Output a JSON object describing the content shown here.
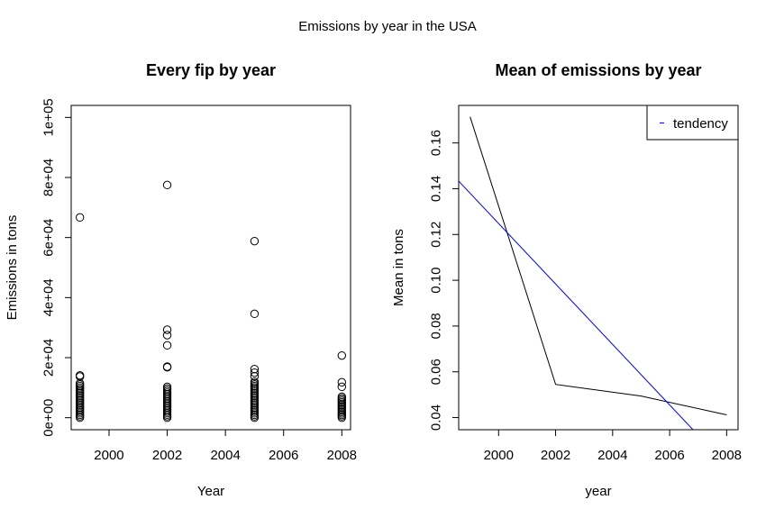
{
  "figure_title": "Emissions by year in the USA",
  "chart_data": [
    {
      "type": "scatter",
      "title": "Every fip by year",
      "xlabel": "Year",
      "ylabel": "Emissions in tons",
      "xlim": [
        1998.7,
        2008.3
      ],
      "ylim": [
        -4000,
        104000
      ],
      "x_ticks": [
        2000,
        2002,
        2004,
        2006,
        2008
      ],
      "x_tick_labels": [
        "2000",
        "2002",
        "2004",
        "2006",
        "2008"
      ],
      "y_ticks": [
        0,
        20000,
        40000,
        60000,
        80000,
        100000
      ],
      "y_tick_labels": [
        "0e+00",
        "2e+04",
        "4e+04",
        "6e+04",
        "8e+04",
        "1e+05"
      ],
      "grid": false,
      "points": [
        {
          "x": 1999,
          "y": 66700
        },
        {
          "x": 1999,
          "y": 14100
        },
        {
          "x": 1999,
          "y": 13700
        },
        {
          "x": 2002,
          "y": 77500
        },
        {
          "x": 2002,
          "y": 29300
        },
        {
          "x": 2002,
          "y": 27500
        },
        {
          "x": 2002,
          "y": 24100
        },
        {
          "x": 2002,
          "y": 17000
        },
        {
          "x": 2002,
          "y": 16800
        },
        {
          "x": 2005,
          "y": 58800
        },
        {
          "x": 2005,
          "y": 34600
        },
        {
          "x": 2005,
          "y": 16200
        },
        {
          "x": 2005,
          "y": 15000
        },
        {
          "x": 2005,
          "y": 13800
        },
        {
          "x": 2008,
          "y": 20700
        },
        {
          "x": 2008,
          "y": 11800
        },
        {
          "x": 2008,
          "y": 10300
        }
      ],
      "dense_ranges": [
        {
          "x": 1999,
          "ymin": 0,
          "ymax": 11500
        },
        {
          "x": 2002,
          "ymin": 0,
          "ymax": 10300
        },
        {
          "x": 2005,
          "ymin": 0,
          "ymax": 12000
        },
        {
          "x": 2008,
          "ymin": 0,
          "ymax": 7000
        }
      ]
    },
    {
      "type": "line",
      "title": "Mean of emissions by year",
      "xlabel": "year",
      "ylabel": "Mean in tons",
      "xlim": [
        1998.6,
        2008.4
      ],
      "ylim": [
        0.0347,
        0.1764
      ],
      "x_ticks": [
        2000,
        2002,
        2004,
        2006,
        2008
      ],
      "x_tick_labels": [
        "2000",
        "2002",
        "2004",
        "2006",
        "2008"
      ],
      "y_ticks": [
        0.04,
        0.06,
        0.08,
        0.1,
        0.12,
        0.14,
        0.16
      ],
      "y_tick_labels": [
        "0.04",
        "0.06",
        "0.08",
        "0.10",
        "0.12",
        "0.14",
        "0.16"
      ],
      "grid": false,
      "series": [
        {
          "x": [
            1999,
            2002,
            2005,
            2008
          ],
          "values": [
            0.1714,
            0.0545,
            0.0494,
            0.0412
          ],
          "color": "#000000"
        }
      ],
      "trend_line": {
        "x": [
          1998.6,
          2006.82
        ],
        "values": [
          0.1433,
          0.0347
        ],
        "color": "#0000ff"
      },
      "legend": {
        "position": "top-right",
        "entries": [
          {
            "label": "tendency",
            "color": "#0000ff"
          }
        ]
      }
    }
  ]
}
